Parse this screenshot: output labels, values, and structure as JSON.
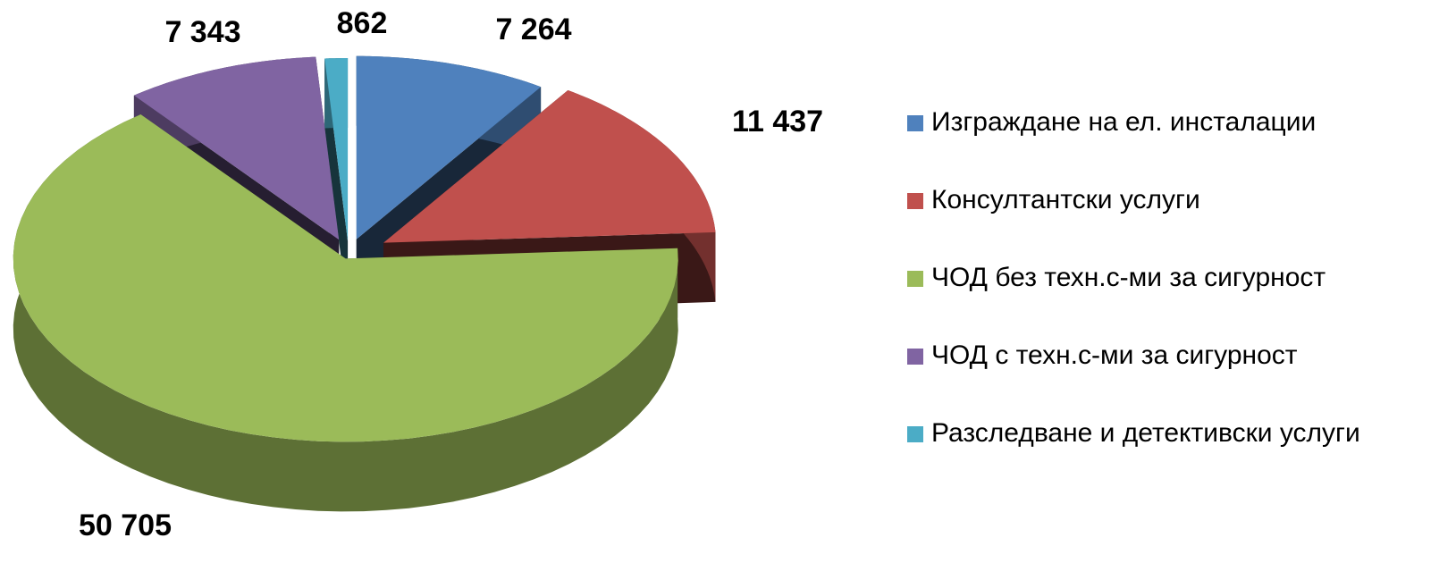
{
  "chart_data": {
    "type": "pie",
    "categories": [
      "Изграждане на ел. инсталации",
      "Консултантски услуги",
      "ЧОД без техн.с-ми за сигурност",
      "ЧОД с техн.с-ми за сигурност",
      "Разследване и детективски услуги"
    ],
    "values": [
      7264,
      11437,
      50705,
      7343,
      862
    ],
    "value_labels": [
      "7 264",
      "11 437",
      "50 705",
      "7 343",
      "862"
    ],
    "colors": [
      "#4f81bd",
      "#c0504d",
      "#9bbb59",
      "#8064a2",
      "#4bacc6"
    ],
    "legend": "right"
  }
}
